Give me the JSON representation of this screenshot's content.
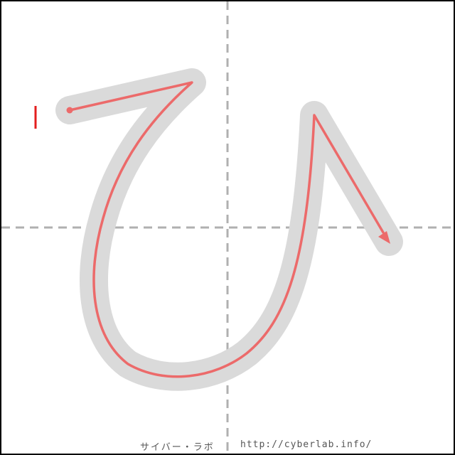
{
  "diagram": {
    "character": "ひ",
    "stroke_count": 1,
    "colors": {
      "background": "#ffffff",
      "border": "#000000",
      "guide_lines": "#b0b0b0",
      "character_shadow": "#dadada",
      "stroke_path": "#ec6a6a",
      "stroke_index_marker": "#e31e1e"
    }
  },
  "footer": {
    "site": "サイバー・ラボ",
    "url": "http://cyberlab.info/"
  }
}
